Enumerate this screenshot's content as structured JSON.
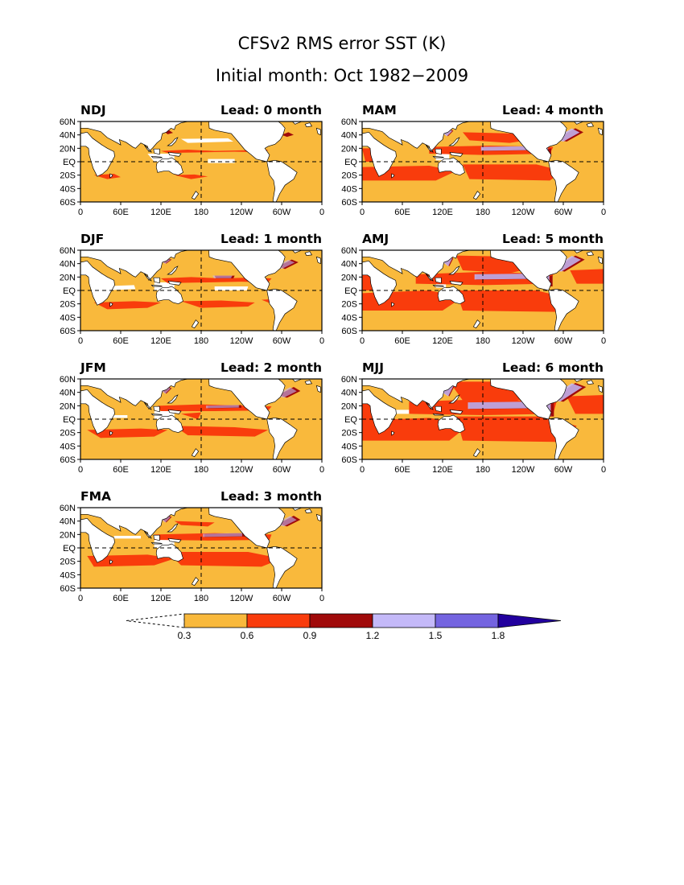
{
  "figure": {
    "title_line1": "CFSv2 RMS error SST (K)",
    "title_line2": "Initial month: Oct 1982−2009"
  },
  "axes": {
    "lon_tick_labels": [
      "0",
      "60E",
      "120E",
      "180",
      "120W",
      "60W",
      "0"
    ],
    "lat_tick_labels": [
      "60N",
      "40N",
      "20N",
      "EQ",
      "20S",
      "40S",
      "60S"
    ]
  },
  "panels": [
    {
      "season": "NDJ",
      "lead_label": "Lead: 0 month",
      "lead_months": 0
    },
    {
      "season": "DJF",
      "lead_label": "Lead: 1 month",
      "lead_months": 1
    },
    {
      "season": "JFM",
      "lead_label": "Lead: 2 month",
      "lead_months": 2
    },
    {
      "season": "FMA",
      "lead_label": "Lead: 3 month",
      "lead_months": 3
    },
    {
      "season": "MAM",
      "lead_label": "Lead: 4 month",
      "lead_months": 4
    },
    {
      "season": "AMJ",
      "lead_label": "Lead: 5 month",
      "lead_months": 5
    },
    {
      "season": "MJJ",
      "lead_label": "Lead: 6 month",
      "lead_months": 6
    }
  ],
  "colorbar": {
    "levels": [
      "0.3",
      "0.6",
      "0.9",
      "1.2",
      "1.5",
      "1.8"
    ],
    "colors": [
      "#f9b93c",
      "#f93c0c",
      "#a00a0a",
      "#c4b9f8",
      "#7464e0",
      "#22009e"
    ],
    "below_color": "#ffffff"
  },
  "colors": {
    "ocean_base": "#f9b93c",
    "moderate": "#f93c0c",
    "high": "#a00a0a",
    "very_high": "#c4b9f8",
    "extreme": "#7464e0",
    "below_threshold": "#ffffff"
  },
  "chart_data": {
    "type": "heatmap",
    "title": "CFSv2 RMS error SST (K)",
    "subtitle": "Initial month: Oct 1982−2009",
    "units": "K",
    "xlim": [
      0,
      360
    ],
    "ylim": [
      -60,
      60
    ],
    "x_ticks": [
      0,
      60,
      120,
      180,
      240,
      300,
      360
    ],
    "y_ticks": [
      60,
      40,
      20,
      0,
      -20,
      -40,
      -60
    ],
    "color_levels": [
      0.3,
      0.6,
      0.9,
      1.2,
      1.5,
      1.8
    ],
    "dashed_reference_lines": {
      "lat": [
        0
      ],
      "lon": [
        180
      ]
    }
  }
}
